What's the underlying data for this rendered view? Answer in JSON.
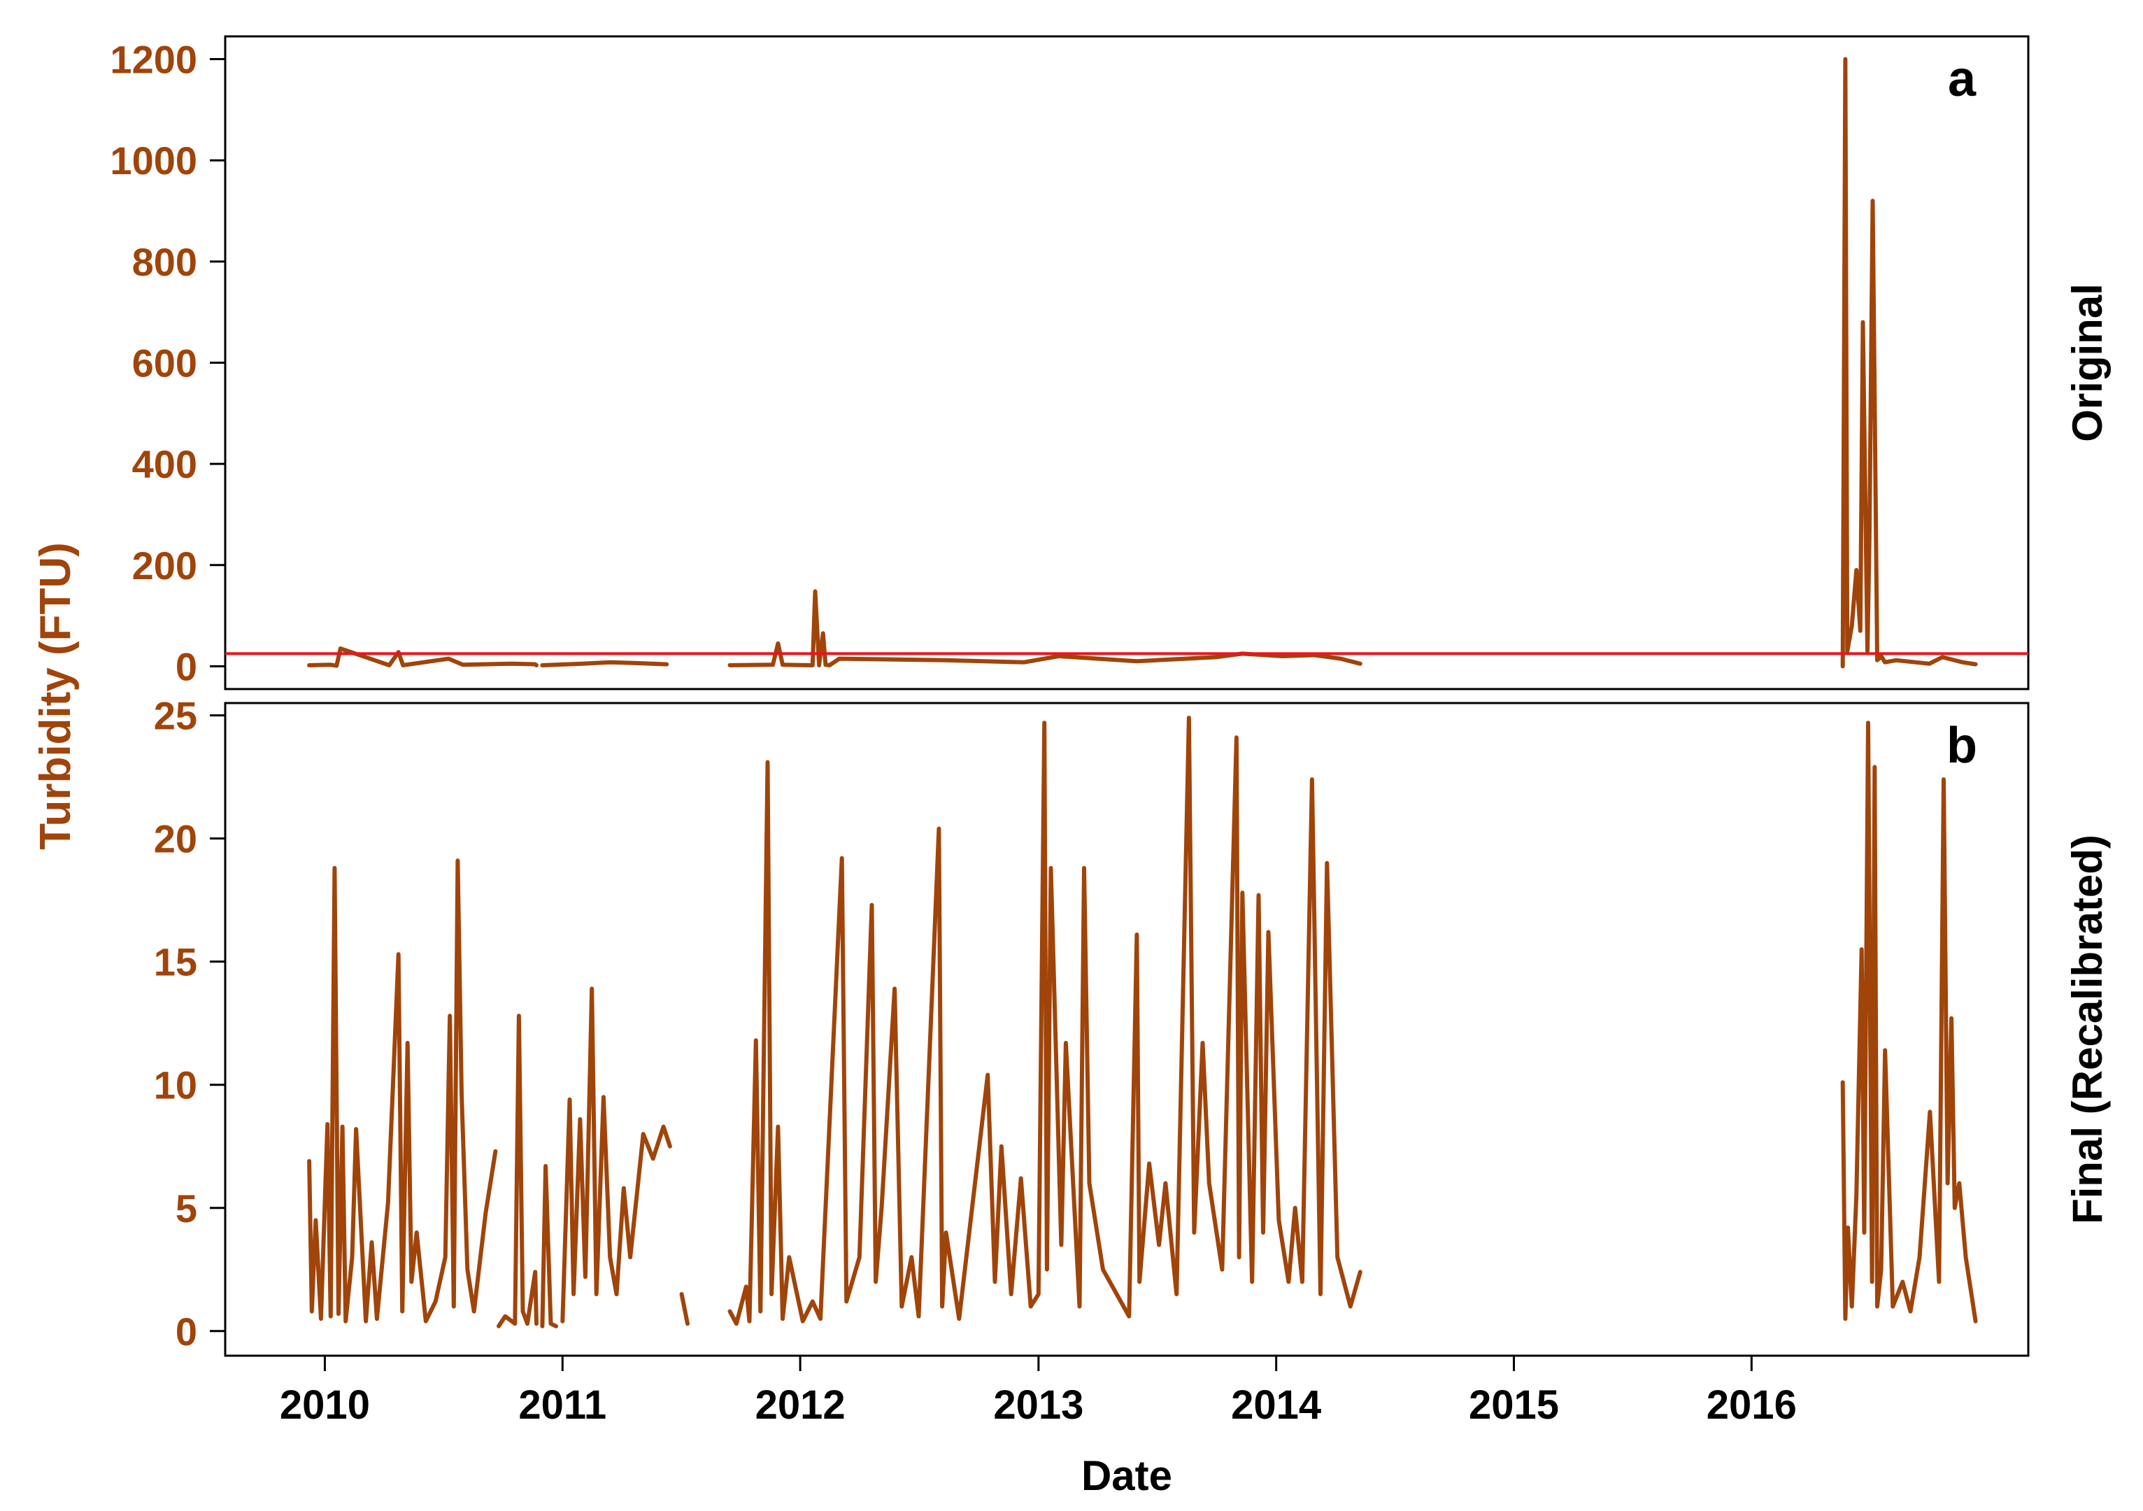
{
  "colors": {
    "series": "#A0440A",
    "axis_label": "#A0440A",
    "threshold": "#E8141E",
    "frame": "#000000",
    "text": "#000000"
  },
  "shared_axes": {
    "xlabel": "Date",
    "ylabel": "Turbidity (FTU)",
    "x_ticks": [
      "2010",
      "2011",
      "2012",
      "2013",
      "2014",
      "2015",
      "2016"
    ]
  },
  "chart_data": [
    {
      "type": "line",
      "panel_label": "a",
      "side_label": "Original",
      "xlim": [
        "2009-08-01",
        "2017-03-01"
      ],
      "ylim": [
        -45,
        1245
      ],
      "y_ticks": [
        0,
        200,
        400,
        600,
        800,
        1000,
        1200
      ],
      "threshold": 25,
      "grid": false,
      "series": [
        {
          "values": [],
          "segments": [
            {
              "dates": [
                "2009-12-08",
                "2010-01-10",
                "2010-01-19",
                "2010-01-25",
                "2010-04-10",
                "2010-04-24",
                "2010-05-01",
                "2010-07-10",
                "2010-08-01",
                "2010-10-15",
                "2010-11-20",
                "2010-11-22"
              ],
              "values": [
                2,
                3,
                1,
                35,
                2,
                28,
                2,
                15,
                3,
                5,
                4,
                2
              ]
            },
            {
              "dates": [
                "2010-12-01",
                "2011-02-01",
                "2011-03-15",
                "2011-05-01",
                "2011-06-10"
              ],
              "values": [
                2,
                5,
                8,
                6,
                4
              ]
            },
            {
              "dates": [
                "2011-09-15",
                "2011-11-20",
                "2011-11-28",
                "2011-12-05",
                "2012-01-20",
                "2012-01-24",
                "2012-01-30",
                "2012-02-05",
                "2012-02-09",
                "2012-02-15",
                "2012-03-01",
                "2012-08-10",
                "2012-12-10",
                "2013-02-01",
                "2013-06-01",
                "2013-10-01",
                "2013-11-10",
                "2014-01-10",
                "2014-03-01",
                "2014-04-10",
                "2014-05-10"
              ],
              "values": [
                2,
                3,
                45,
                3,
                2,
                148,
                2,
                65,
                3,
                2,
                15,
                12,
                8,
                20,
                10,
                18,
                25,
                20,
                22,
                15,
                5
              ]
            }
          ]
        },
        {
          "values": [],
          "segments": [
            {
              "dates": [
                "2016-05-20",
                "2016-05-24",
                "2016-05-27",
                "2016-06-03",
                "2016-06-10",
                "2016-06-16",
                "2016-06-20",
                "2016-06-27",
                "2016-06-30",
                "2016-07-05",
                "2016-07-08",
                "2016-07-12",
                "2016-07-18",
                "2016-07-24",
                "2016-08-10",
                "2016-09-30",
                "2016-10-20",
                "2016-11-20",
                "2016-12-10"
              ],
              "values": [
                0,
                1200,
                30,
                80,
                190,
                70,
                680,
                30,
                250,
                920,
                530,
                12,
                20,
                8,
                12,
                5,
                18,
                8,
                4
              ]
            }
          ]
        }
      ]
    },
    {
      "type": "line",
      "panel_label": "b",
      "side_label": "Final (Recalibrated)",
      "xlim": [
        "2009-08-01",
        "2017-03-01"
      ],
      "ylim": [
        -1,
        25.5
      ],
      "y_ticks": [
        0,
        5,
        10,
        15,
        20,
        25
      ],
      "grid": false,
      "series": [
        {
          "values": [],
          "segments": [
            {
              "dates": [
                "2009-12-08",
                "2009-12-12",
                "2009-12-18",
                "2009-12-26",
                "2010-01-05",
                "2010-01-10",
                "2010-01-16",
                "2010-01-22",
                "2010-01-28",
                "2010-02-02",
                "2010-02-12",
                "2010-02-18",
                "2010-03-05",
                "2010-03-14",
                "2010-03-22",
                "2010-04-08",
                "2010-04-24",
                "2010-04-30",
                "2010-05-08",
                "2010-05-14",
                "2010-05-22",
                "2010-06-05",
                "2010-06-20",
                "2010-07-05",
                "2010-07-12",
                "2010-07-18",
                "2010-07-24",
                "2010-07-30",
                "2010-08-08",
                "2010-08-18",
                "2010-09-05",
                "2010-09-20"
              ],
              "values": [
                6.9,
                0.8,
                4.5,
                0.5,
                8.4,
                0.6,
                18.8,
                0.7,
                8.3,
                0.4,
                3.0,
                8.2,
                0.4,
                3.6,
                0.5,
                5.2,
                15.3,
                0.8,
                11.7,
                2.0,
                4.0,
                0.4,
                1.2,
                3.0,
                12.8,
                1.0,
                19.1,
                9.6,
                2.5,
                0.8,
                4.8,
                7.3
              ]
            },
            {
              "dates": [
                "2010-09-25",
                "2010-10-05",
                "2010-10-20",
                "2010-10-26",
                "2010-11-01",
                "2010-11-08",
                "2010-11-20",
                "2010-11-22"
              ],
              "values": [
                0.2,
                0.6,
                0.3,
                12.8,
                0.8,
                0.3,
                2.4,
                0.3
              ]
            },
            {
              "dates": [
                "2010-12-01",
                "2010-12-06",
                "2010-12-14",
                "2010-12-22"
              ],
              "values": [
                0.2,
                6.7,
                0.3,
                0.2
              ]
            },
            {
              "dates": [
                "2011-01-01",
                "2011-01-12",
                "2011-01-18",
                "2011-01-28",
                "2011-02-05",
                "2011-02-15",
                "2011-02-22",
                "2011-03-05",
                "2011-03-15",
                "2011-03-25",
                "2011-04-05",
                "2011-04-15",
                "2011-04-25",
                "2011-05-05",
                "2011-05-20",
                "2011-06-05",
                "2011-06-15"
              ],
              "values": [
                0.4,
                9.4,
                1.5,
                8.6,
                2.2,
                13.9,
                1.5,
                9.5,
                3.0,
                1.5,
                5.8,
                3.0,
                5.5,
                8.0,
                7.0,
                8.3,
                7.5
              ]
            },
            {
              "dates": [
                "2011-07-03",
                "2011-07-12"
              ],
              "values": [
                1.5,
                0.3
              ]
            },
            {
              "dates": [
                "2011-09-15",
                "2011-09-25",
                "2011-10-10",
                "2011-10-15",
                "2011-10-25",
                "2011-11-01",
                "2011-11-12",
                "2011-11-18",
                "2011-11-28",
                "2011-12-05",
                "2011-12-15",
                "2012-01-05",
                "2012-01-20",
                "2012-02-01",
                "2012-03-05",
                "2012-03-12",
                "2012-04-01",
                "2012-04-20",
                "2012-04-26",
                "2012-05-05",
                "2012-05-25",
                "2012-06-05",
                "2012-06-20",
                "2012-07-01",
                "2012-08-01",
                "2012-08-06",
                "2012-08-12",
                "2012-09-01",
                "2012-10-15",
                "2012-10-26",
                "2012-11-05",
                "2012-11-20",
                "2012-12-05",
                "2012-12-20",
                "2013-01-01",
                "2013-01-10",
                "2013-01-14",
                "2013-01-20",
                "2013-02-05",
                "2013-02-12",
                "2013-03-05",
                "2013-03-12",
                "2013-03-20",
                "2013-04-10",
                "2013-05-20",
                "2013-06-01",
                "2013-06-05",
                "2013-06-20",
                "2013-07-05",
                "2013-07-15",
                "2013-08-01",
                "2013-08-20",
                "2013-08-28",
                "2013-09-10",
                "2013-09-20",
                "2013-10-10",
                "2013-11-01",
                "2013-11-05",
                "2013-11-10",
                "2013-11-25",
                "2013-12-05",
                "2013-12-12",
                "2013-12-20",
                "2014-01-05",
                "2014-01-20",
                "2014-01-30",
                "2014-02-10",
                "2014-02-25",
                "2014-03-10",
                "2014-03-20",
                "2014-04-05",
                "2014-04-15",
                "2014-04-25",
                "2014-05-10"
              ],
              "values": [
                0.8,
                0.3,
                1.8,
                0.4,
                11.8,
                0.8,
                23.1,
                1.5,
                8.3,
                0.5,
                3.0,
                0.4,
                1.2,
                0.5,
                19.2,
                1.2,
                3.0,
                17.3,
                2.0,
                5.0,
                13.9,
                1.0,
                3.0,
                0.6,
                20.4,
                1.0,
                4.0,
                0.5,
                10.4,
                2.0,
                7.5,
                1.5,
                6.2,
                1.0,
                1.5,
                24.7,
                2.5,
                18.8,
                3.5,
                11.7,
                1.0,
                18.8,
                6.0,
                2.5,
                0.6,
                16.1,
                2.0,
                6.8,
                3.5,
                6.0,
                1.5,
                24.9,
                4.0,
                11.7,
                6.0,
                2.5,
                24.1,
                3.0,
                17.8,
                2.0,
                17.7,
                4.0,
                16.2,
                4.5,
                2.0,
                5.0,
                2.0,
                22.4,
                1.5,
                19.0,
                3.0,
                2.0,
                1.0,
                2.4
              ]
            },
            {
              "dates": [
                "2016-05-20",
                "2016-05-24",
                "2016-05-28",
                "2016-06-03",
                "2016-06-10",
                "2016-06-18",
                "2016-06-22",
                "2016-06-28",
                "2016-07-04",
                "2016-07-08",
                "2016-07-12",
                "2016-07-18",
                "2016-07-24",
                "2016-08-05",
                "2016-08-20",
                "2016-09-01",
                "2016-09-15",
                "2016-10-01",
                "2016-10-15",
                "2016-10-22",
                "2016-10-28",
                "2016-11-03",
                "2016-11-08",
                "2016-11-15",
                "2016-11-25",
                "2016-12-10"
              ],
              "values": [
                10.1,
                0.5,
                4.2,
                1.0,
                5.5,
                15.5,
                4.0,
                24.7,
                2.0,
                22.9,
                1.0,
                2.5,
                11.4,
                1.0,
                2.0,
                0.8,
                3.0,
                8.9,
                2.0,
                22.4,
                6.0,
                12.7,
                5.0,
                6.0,
                3.0,
                0.4
              ]
            }
          ]
        }
      ]
    }
  ]
}
